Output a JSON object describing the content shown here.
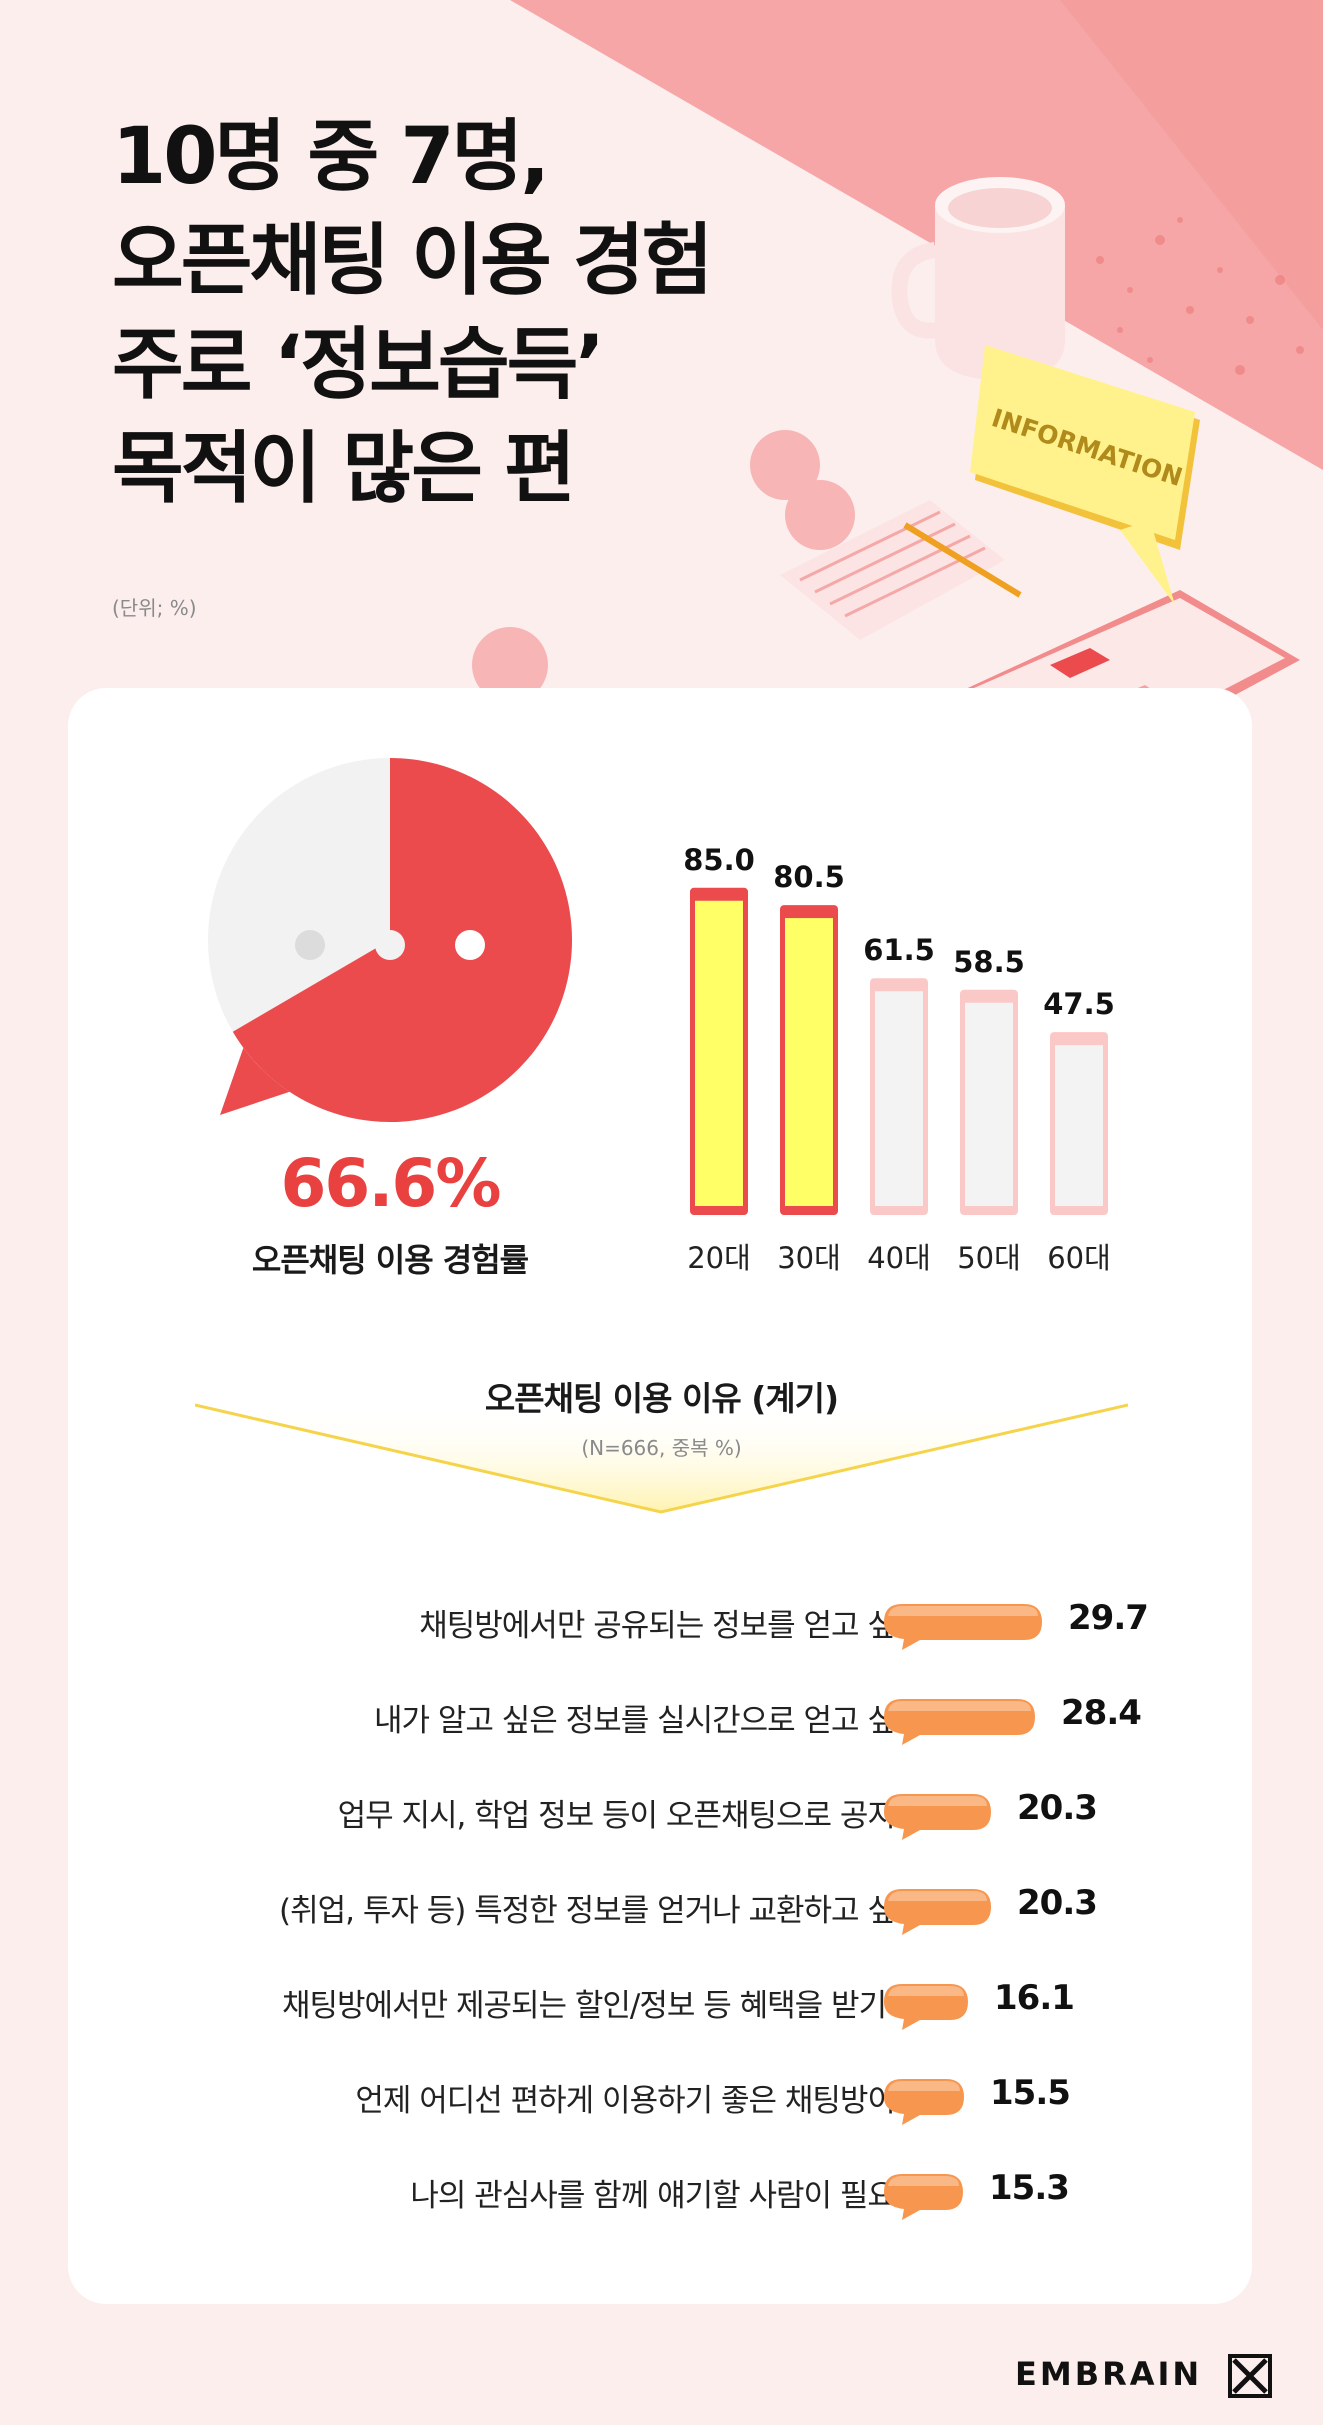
{
  "title": {
    "lines": [
      "10명 중 7명,",
      "오픈채팅 이용 경험",
      "주로 ‘정보습득’",
      "목적이 많은 편"
    ]
  },
  "unit": "(단위; %)",
  "illustration": {
    "sign_text": "INFORMATION"
  },
  "colors": {
    "accent_red": "#ec4b4e",
    "highlight_yellow": "#ffff66",
    "bar_orange": "#f7964f",
    "funnel_yellow": "#f5d44b"
  },
  "overall": {
    "value_label": "66.6%",
    "label": "오픈채팅 이용 경험률"
  },
  "reasons": {
    "title": "오픈채팅 이용 이유 (계기)",
    "subtitle": "(N=666, 중복 %)"
  },
  "brand": {
    "name": "EMBRAIN"
  },
  "chart_data": [
    {
      "type": "pie",
      "categories": [
        "오픈채팅 이용 경험",
        ""
      ],
      "values": [
        66.6,
        33.4
      ],
      "label": "오픈채팅 이용 경험률"
    },
    {
      "type": "bar",
      "categories": [
        "20대",
        "30대",
        "40대",
        "50대",
        "60대"
      ],
      "values": [
        85.0,
        80.5,
        61.5,
        58.5,
        47.5
      ],
      "value_labels": [
        "85.0",
        "80.5",
        "61.5",
        "58.5",
        "47.5"
      ],
      "highlighted": [
        "20대",
        "30대"
      ],
      "ylim": [
        0,
        100
      ]
    },
    {
      "type": "bar",
      "orientation": "horizontal",
      "title": "오픈채팅 이용 이유 (계기)",
      "subtitle": "(N=666, 중복 %)",
      "categories": [
        "채팅방에서만 공유되는 정보를 얻고 싶어서",
        "내가 알고 싶은 정보를 실시간으로 얻고 싶어서",
        "업무 지시, 학업 정보 등이 오픈채팅으로 공지돼서",
        "(취업, 투자 등) 특정한 정보를 얻거나 교환하고 싶어서",
        "채팅방에서만 제공되는 할인/정보 등 혜택을 받기 위해",
        "언제 어디선 편하게 이용하기 좋은 채팅방이라서",
        "나의 관심사를 함께 얘기할 사람이 필요해서"
      ],
      "values": [
        29.7,
        28.4,
        20.3,
        20.3,
        16.1,
        15.5,
        15.3
      ],
      "value_labels": [
        "29.7",
        "28.4",
        "20.3",
        "20.3",
        "16.1",
        "15.5",
        "15.3"
      ]
    }
  ]
}
